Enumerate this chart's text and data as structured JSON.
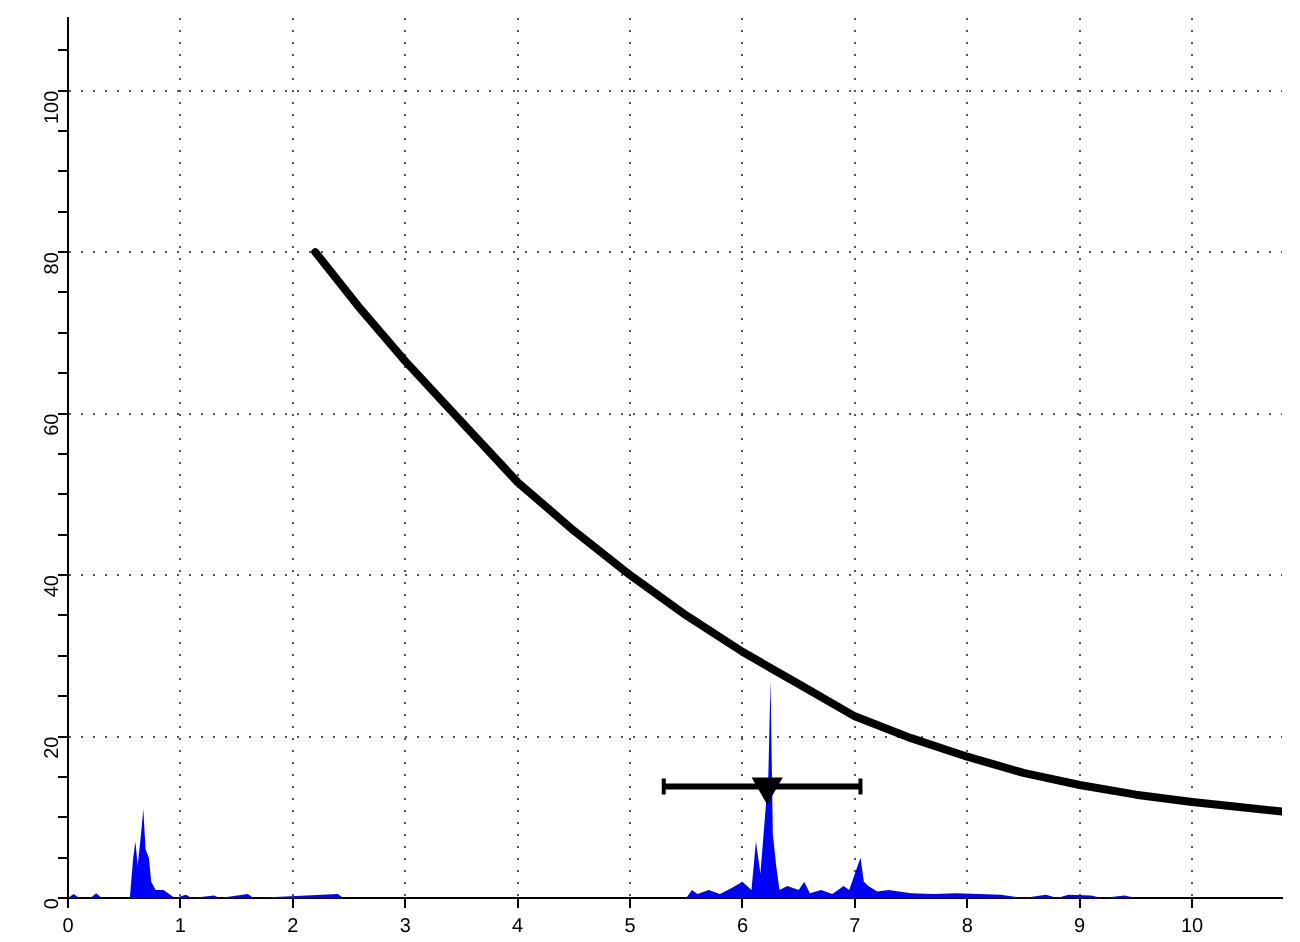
{
  "chart_data": {
    "type": "line",
    "xlim": [
      0,
      10.8
    ],
    "ylim": [
      0,
      109
    ],
    "xticks": [
      0,
      1,
      2,
      3,
      4,
      5,
      6,
      7,
      8,
      9,
      10
    ],
    "yticks": [
      0,
      {
        "value": 5,
        "label": null
      },
      {
        "value": 10,
        "label": null
      },
      {
        "value": 15,
        "label": null
      },
      20,
      {
        "value": 25,
        "label": null
      },
      {
        "value": 30,
        "label": null
      },
      {
        "value": 35,
        "label": null
      },
      40,
      {
        "value": 45,
        "label": null
      },
      {
        "value": 50,
        "label": null
      },
      {
        "value": 55,
        "label": null
      },
      60,
      {
        "value": 65,
        "label": null
      },
      {
        "value": 70,
        "label": null
      },
      {
        "value": 75,
        "label": null
      },
      80,
      {
        "value": 85,
        "label": null
      },
      {
        "value": 90,
        "label": null
      },
      {
        "value": 95,
        "label": null
      },
      100,
      {
        "value": 105,
        "label": null
      }
    ],
    "grid": true,
    "series": [
      {
        "type": "area",
        "color": "#0000ff",
        "x": [
          0,
          0.05,
          0.1,
          0.2,
          0.25,
          0.3,
          0.55,
          0.58,
          0.6,
          0.62,
          0.65,
          0.67,
          0.69,
          0.72,
          0.74,
          0.78,
          0.85,
          0.9,
          0.95,
          1.05,
          1.1,
          1.3,
          1.35,
          1.6,
          1.65,
          2.4,
          2.45,
          5.5,
          5.55,
          5.6,
          5.7,
          5.8,
          5.9,
          6.0,
          6.08,
          6.12,
          6.16,
          6.2,
          6.23,
          6.25,
          6.27,
          6.3,
          6.33,
          6.4,
          6.5,
          6.55,
          6.6,
          6.7,
          6.8,
          6.9,
          6.95,
          7.0,
          7.05,
          7.08,
          7.12,
          7.2,
          7.3,
          7.5,
          7.7,
          7.9,
          8.1,
          8.3,
          8.5,
          8.7,
          8.8,
          8.9,
          9.1,
          9.2,
          9.4,
          9.5,
          10.8
        ],
        "values": [
          0,
          0.5,
          0,
          0,
          0.6,
          0,
          0,
          5,
          7,
          4,
          8,
          11,
          6,
          5,
          2,
          1,
          1,
          0.5,
          0,
          0.4,
          0,
          0.3,
          0,
          0.5,
          0,
          0.5,
          0,
          0,
          1,
          0.5,
          1,
          0.5,
          1.2,
          2,
          1,
          7,
          3,
          10,
          15,
          27,
          8,
          4,
          1,
          1.5,
          1,
          2,
          0.6,
          1,
          0.5,
          1.5,
          1,
          3,
          5,
          2,
          1.5,
          0.8,
          1,
          0.6,
          0.5,
          0.6,
          0.5,
          0.4,
          0,
          0.4,
          0,
          0.4,
          0.3,
          0,
          0.3,
          0,
          0
        ]
      },
      {
        "color": "#000000",
        "x": [
          2.2,
          2.6,
          3,
          3.5,
          4,
          4.5,
          5,
          5.5,
          6,
          6.25,
          6.5,
          7,
          7.5,
          8,
          8.5,
          9,
          9.5,
          10,
          10.4,
          10.8
        ],
        "values": [
          80,
          73,
          66.5,
          59,
          51.5,
          45.5,
          40,
          35,
          30.5,
          28.5,
          26.5,
          22.5,
          19.8,
          17.5,
          15.5,
          14,
          12.8,
          11.9,
          11.3,
          10.7
        ]
      },
      {
        "type": "scatter",
        "color": "#000000",
        "marker": "triangle",
        "x": [
          6.22
        ],
        "values": [
          13.8
        ],
        "xerrors": [
          [
            5.3,
            7.05
          ]
        ]
      }
    ]
  }
}
